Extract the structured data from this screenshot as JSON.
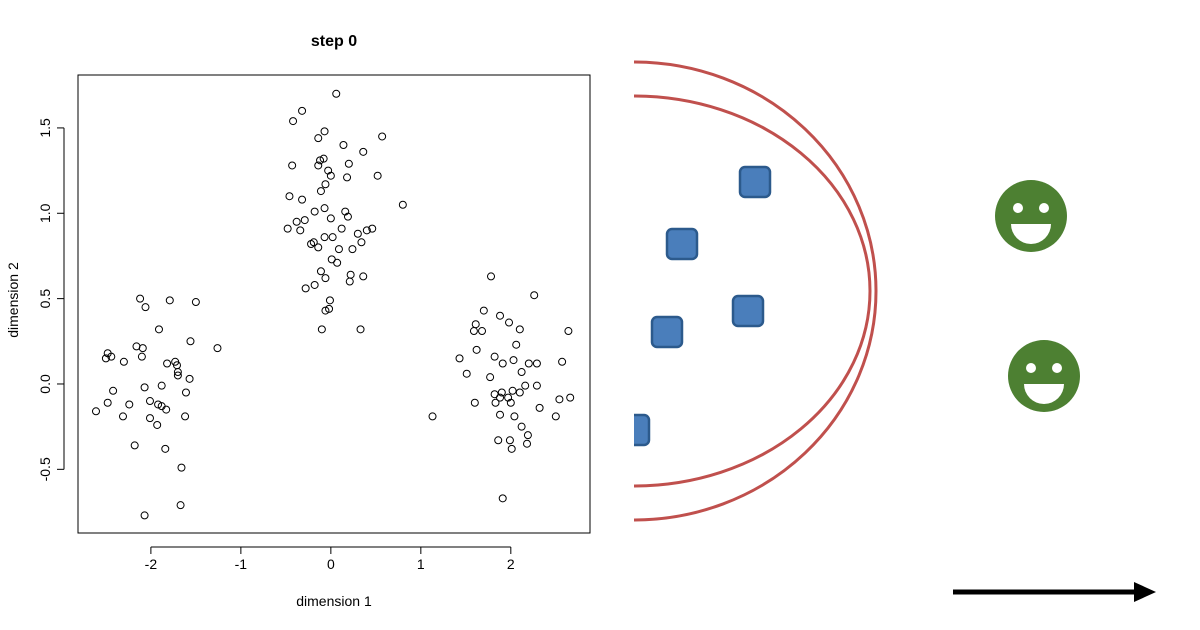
{
  "chart_data": {
    "type": "scatter",
    "title": "step 0",
    "x_label": "dimension 1",
    "y_label": "dimension 2",
    "color": "#000000",
    "xlim": [
      -2.81,
      2.88
    ],
    "ylim": [
      -0.873,
      1.81
    ],
    "xticks": [
      -2,
      -1,
      0,
      1,
      2
    ],
    "yticks": [
      -0.5,
      {
        "value": 0,
        "label": "0.0"
      },
      0.5,
      {
        "value": 1,
        "label": "1.0"
      },
      1.5
    ],
    "x": [
      -2.12,
      -1.79,
      -1.5,
      -2.06,
      -1.91,
      -1.56,
      -1.26,
      -2.16,
      -2.09,
      -2.48,
      -2.5,
      -2.44,
      -2.3,
      -2.1,
      -1.73,
      -1.71,
      -1.82,
      -1.7,
      -1.7,
      -1.57,
      -2.42,
      -2.07,
      -1.88,
      -1.61,
      -2.48,
      -2.24,
      -2.01,
      -1.92,
      -1.88,
      -1.83,
      -2.61,
      -2.31,
      -2.01,
      -1.62,
      -1.93,
      -2.18,
      -1.84,
      -1.66,
      -1.67,
      -2.07,
      0.06,
      -0.32,
      -0.42,
      -0.07,
      -0.14,
      0.57,
      0.14,
      0.36,
      -0.43,
      -0.12,
      -0.08,
      -0.14,
      -0.03,
      0.2,
      0,
      0.52,
      0.18,
      -0.06,
      -0.11,
      -0.46,
      -0.32,
      0.8,
      -0.18,
      -0.07,
      0.16,
      0.19,
      0,
      -0.38,
      -0.29,
      -0.48,
      -0.34,
      0.12,
      0.3,
      0.4,
      0.46,
      -0.19,
      -0.22,
      -0.07,
      0.02,
      0.09,
      0.34,
      -0.14,
      0.01,
      0.07,
      0.24,
      -0.11,
      0.22,
      0.36,
      0.21,
      -0.06,
      -0.18,
      -0.28,
      -0.01,
      -0.02,
      -0.06,
      -0.1,
      0.33,
      1.78,
      2.26,
      1.7,
      1.88,
      1.61,
      1.98,
      2.1,
      2.64,
      1.59,
      1.68,
      1.62,
      2.06,
      1.43,
      1.82,
      2.03,
      1.91,
      2.2,
      2.29,
      2.57,
      2.12,
      1.51,
      1.77,
      2.16,
      2.29,
      1.82,
      1.9,
      2.02,
      2.1,
      1.88,
      1.97,
      2.0,
      1.6,
      1.83,
      2.54,
      2.66,
      2.32,
      1.13,
      1.88,
      2.04,
      2.5,
      2.12,
      2.19,
      1.86,
      2.18,
      1.99,
      2.01,
      1.91
    ],
    "values": [
      0.5,
      0.49,
      0.48,
      0.45,
      0.32,
      0.25,
      0.21,
      0.22,
      0.21,
      0.18,
      0.15,
      0.16,
      0.13,
      0.16,
      0.13,
      0.11,
      0.12,
      0.07,
      0.05,
      0.03,
      -0.04,
      -0.02,
      -0.01,
      -0.05,
      -0.11,
      -0.12,
      -0.1,
      -0.12,
      -0.13,
      -0.15,
      -0.16,
      -0.19,
      -0.2,
      -0.19,
      -0.24,
      -0.36,
      -0.38,
      -0.49,
      -0.71,
      -0.77,
      1.7,
      1.6,
      1.54,
      1.48,
      1.44,
      1.45,
      1.4,
      1.36,
      1.28,
      1.31,
      1.32,
      1.28,
      1.25,
      1.29,
      1.22,
      1.22,
      1.21,
      1.17,
      1.13,
      1.1,
      1.08,
      1.05,
      1.01,
      1.03,
      1.01,
      0.98,
      0.97,
      0.95,
      0.96,
      0.91,
      0.9,
      0.91,
      0.88,
      0.9,
      0.91,
      0.83,
      0.82,
      0.86,
      0.86,
      0.79,
      0.83,
      0.8,
      0.73,
      0.71,
      0.79,
      0.66,
      0.64,
      0.63,
      0.6,
      0.62,
      0.58,
      0.56,
      0.49,
      0.44,
      0.43,
      0.32,
      0.32,
      0.63,
      0.52,
      0.43,
      0.4,
      0.35,
      0.36,
      0.32,
      0.31,
      0.31,
      0.31,
      0.2,
      0.23,
      0.15,
      0.16,
      0.14,
      0.12,
      0.12,
      0.12,
      0.13,
      0.07,
      0.06,
      0.04,
      -0.01,
      -0.01,
      -0.06,
      -0.05,
      -0.04,
      -0.05,
      -0.08,
      -0.08,
      -0.11,
      -0.11,
      -0.11,
      -0.09,
      -0.08,
      -0.14,
      -0.19,
      -0.18,
      -0.19,
      -0.19,
      -0.25,
      -0.3,
      -0.33,
      -0.35,
      -0.33,
      -0.38,
      -0.67
    ]
  }
}
